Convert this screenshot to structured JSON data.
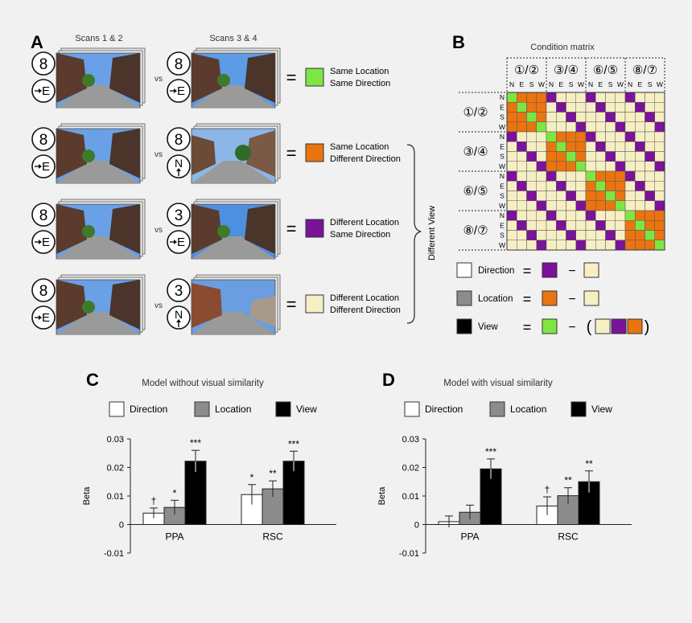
{
  "panels": {
    "A": {
      "letter": "A",
      "col1_title": "Scans 1 & 2",
      "col2_title": "Scans 3 & 4",
      "vs": "vs",
      "equals": "=",
      "brace_label": "Different View",
      "rows": [
        {
          "left_id": "8",
          "left_dir": "E",
          "right_id": "8",
          "right_dir": "E",
          "color": "#7ee642",
          "line1": "Same Location",
          "line2": "Same Direction",
          "sky": "#5d9be4"
        },
        {
          "left_id": "8",
          "left_dir": "E",
          "right_id": "8",
          "right_dir": "N",
          "color": "#ea7410",
          "line1": "Same Location",
          "line2": "Different Direction",
          "sky": "#8cb6e8"
        },
        {
          "left_id": "8",
          "left_dir": "E",
          "right_id": "3",
          "right_dir": "E",
          "color": "#7a129a",
          "line1": "Different Location",
          "line2": "Same Direction",
          "sky": "#4f8fe0"
        },
        {
          "left_id": "8",
          "left_dir": "E",
          "right_id": "3",
          "right_dir": "N",
          "color": "#f7efc4",
          "line1": "Different Location",
          "line2": "Different Direction",
          "sky": "#6a9ee0"
        }
      ]
    },
    "B": {
      "letter": "B",
      "title": "Condition matrix",
      "groups": [
        "①/②",
        "③/④",
        "⑥/⑤",
        "⑧/⑦"
      ],
      "directions": [
        "N",
        "E",
        "S",
        "W"
      ],
      "legend": [
        {
          "name": "Direction",
          "swatch": "#ffffff",
          "eq": "=",
          "minus": "−",
          "a": [
            "#7a129a"
          ],
          "b": [
            "#f7efc4"
          ]
        },
        {
          "name": "Location",
          "swatch": "#8c8c8c",
          "eq": "=",
          "minus": "−",
          "a": [
            "#ea7410"
          ],
          "b": [
            "#f7efc4"
          ]
        },
        {
          "name": "View",
          "swatch": "#000000",
          "eq": "=",
          "minus": "−",
          "a": [
            "#7ee642"
          ],
          "b": [
            "#f7efc4",
            "#7a129a",
            "#ea7410"
          ],
          "lparen": "(",
          "rparen": ")"
        }
      ],
      "colors": {
        "view": "#7ee642",
        "location": "#ea7410",
        "direction": "#7a129a",
        "neither": "#f7efc4"
      }
    },
    "C": {
      "letter": "C"
    },
    "D": {
      "letter": "D"
    }
  },
  "chart_data": [
    {
      "type": "bar",
      "title": "Model without visual similarity",
      "ylabel": "Beta",
      "categories": [
        "PPA",
        "RSC"
      ],
      "ylim": [
        -0.01,
        0.03
      ],
      "yticks": [
        "-0.01",
        "0",
        "0.01",
        "0.02",
        "0.03"
      ],
      "series": [
        {
          "name": "Direction",
          "color": "#ffffff",
          "values": [
            0.004,
            0.0105
          ],
          "errors": [
            0.0018,
            0.0035
          ],
          "sig": [
            "†",
            "*"
          ]
        },
        {
          "name": "Location",
          "color": "#8c8c8c",
          "values": [
            0.006,
            0.0125
          ],
          "errors": [
            0.0025,
            0.0028
          ],
          "sig": [
            "*",
            "**"
          ]
        },
        {
          "name": "View",
          "color": "#000000",
          "values": [
            0.0222,
            0.0222
          ],
          "errors": [
            0.0038,
            0.0035
          ],
          "sig": [
            "***",
            "***"
          ]
        }
      ]
    },
    {
      "type": "bar",
      "title": "Model with visual similarity",
      "ylabel": "Beta",
      "categories": [
        "PPA",
        "RSC"
      ],
      "ylim": [
        -0.01,
        0.03
      ],
      "yticks": [
        "-0.01",
        "0",
        "0.01",
        "0.02",
        "0.03"
      ],
      "series": [
        {
          "name": "Direction",
          "color": "#ffffff",
          "values": [
            0.001,
            0.0065
          ],
          "errors": [
            0.002,
            0.0032
          ],
          "sig": [
            "",
            "†"
          ]
        },
        {
          "name": "Location",
          "color": "#8c8c8c",
          "values": [
            0.0043,
            0.0101
          ],
          "errors": [
            0.0025,
            0.0028
          ],
          "sig": [
            "",
            "**"
          ]
        },
        {
          "name": "View",
          "color": "#000000",
          "values": [
            0.0195,
            0.015
          ],
          "errors": [
            0.0035,
            0.0038
          ],
          "sig": [
            "***",
            "**"
          ]
        }
      ]
    }
  ]
}
